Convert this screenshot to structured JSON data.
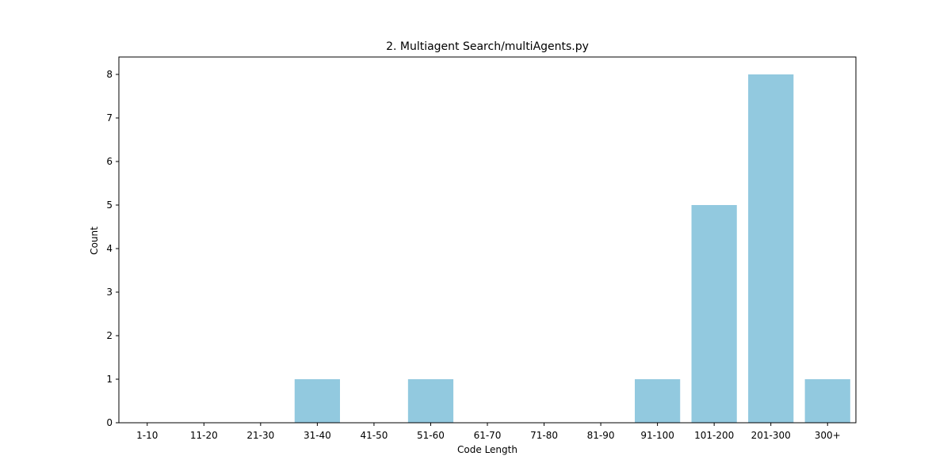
{
  "chart_data": {
    "type": "bar",
    "title": "2. Multiagent Search/multiAgents.py",
    "xlabel": "Code Length",
    "ylabel": "Count",
    "categories": [
      "1-10",
      "11-20",
      "21-30",
      "31-40",
      "41-50",
      "51-60",
      "61-70",
      "71-80",
      "81-90",
      "91-100",
      "101-200",
      "201-300",
      "300+"
    ],
    "values": [
      0,
      0,
      0,
      1,
      0,
      1,
      0,
      0,
      0,
      1,
      5,
      8,
      1
    ],
    "ylim": [
      0,
      8.4
    ],
    "yticks": [
      0,
      1,
      2,
      3,
      4,
      5,
      6,
      7,
      8
    ],
    "bar_color": "#92c9df",
    "grid": false,
    "legend": "none"
  }
}
